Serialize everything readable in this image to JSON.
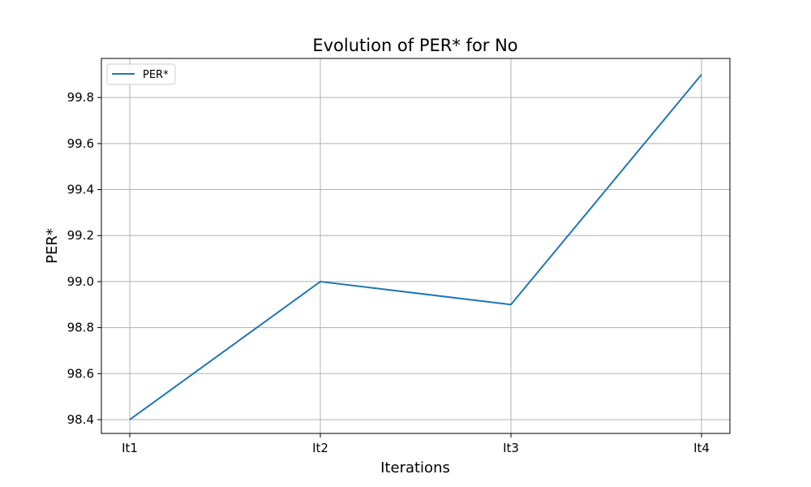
{
  "chart_data": {
    "type": "line",
    "title": "Evolution of PER* for No",
    "xlabel": "Iterations",
    "ylabel": "PER*",
    "categories": [
      "It1",
      "It2",
      "It3",
      "It4"
    ],
    "series": [
      {
        "name": "PER*",
        "values": [
          98.4,
          99.0,
          98.9,
          99.9
        ],
        "color": "#1f77b4"
      }
    ],
    "ylim": [
      98.34,
      99.97
    ],
    "yticks": [
      98.4,
      98.6,
      98.8,
      99.0,
      99.2,
      99.4,
      99.6,
      99.8
    ],
    "ytick_labels": [
      "98.4",
      "98.6",
      "98.8",
      "99.0",
      "99.2",
      "99.4",
      "99.6",
      "99.8"
    ],
    "grid": true,
    "legend_position": "top-left",
    "colors": {
      "axes": "#000000",
      "grid": "#b0b0b0",
      "background": "#ffffff"
    }
  }
}
